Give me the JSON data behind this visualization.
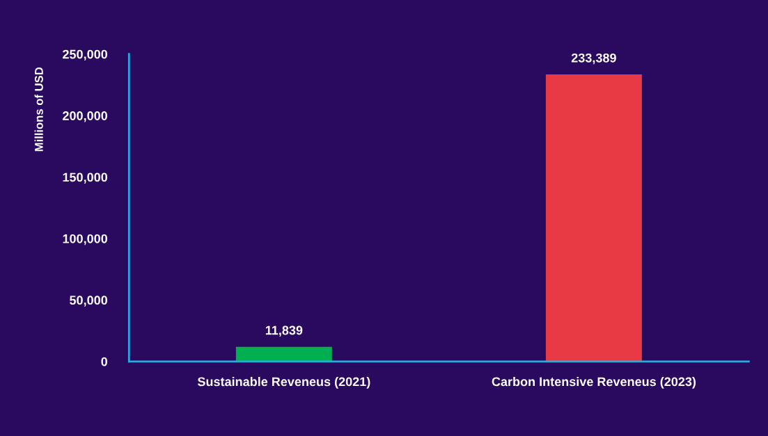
{
  "chart_data": {
    "type": "bar",
    "ylabel": "Millions of USD",
    "categories": [
      "Sustainable Reveneus (2021)",
      "Carbon Intensive Reveneus (2023)"
    ],
    "values": [
      11839,
      233389
    ],
    "colors": [
      "#00b050",
      "#e83a45"
    ],
    "value_labels": [
      "11,839",
      "233,389"
    ],
    "ylim": [
      0,
      250000
    ],
    "yticks": [
      {
        "value": 0,
        "label": "0"
      },
      {
        "value": 50000,
        "label": "50,000"
      },
      {
        "value": 100000,
        "label": "100,000"
      },
      {
        "value": 150000,
        "label": "150,000"
      },
      {
        "value": 200000,
        "label": "200,000"
      },
      {
        "value": 250000,
        "label": "250,000"
      }
    ],
    "grid": false,
    "legend": false
  }
}
